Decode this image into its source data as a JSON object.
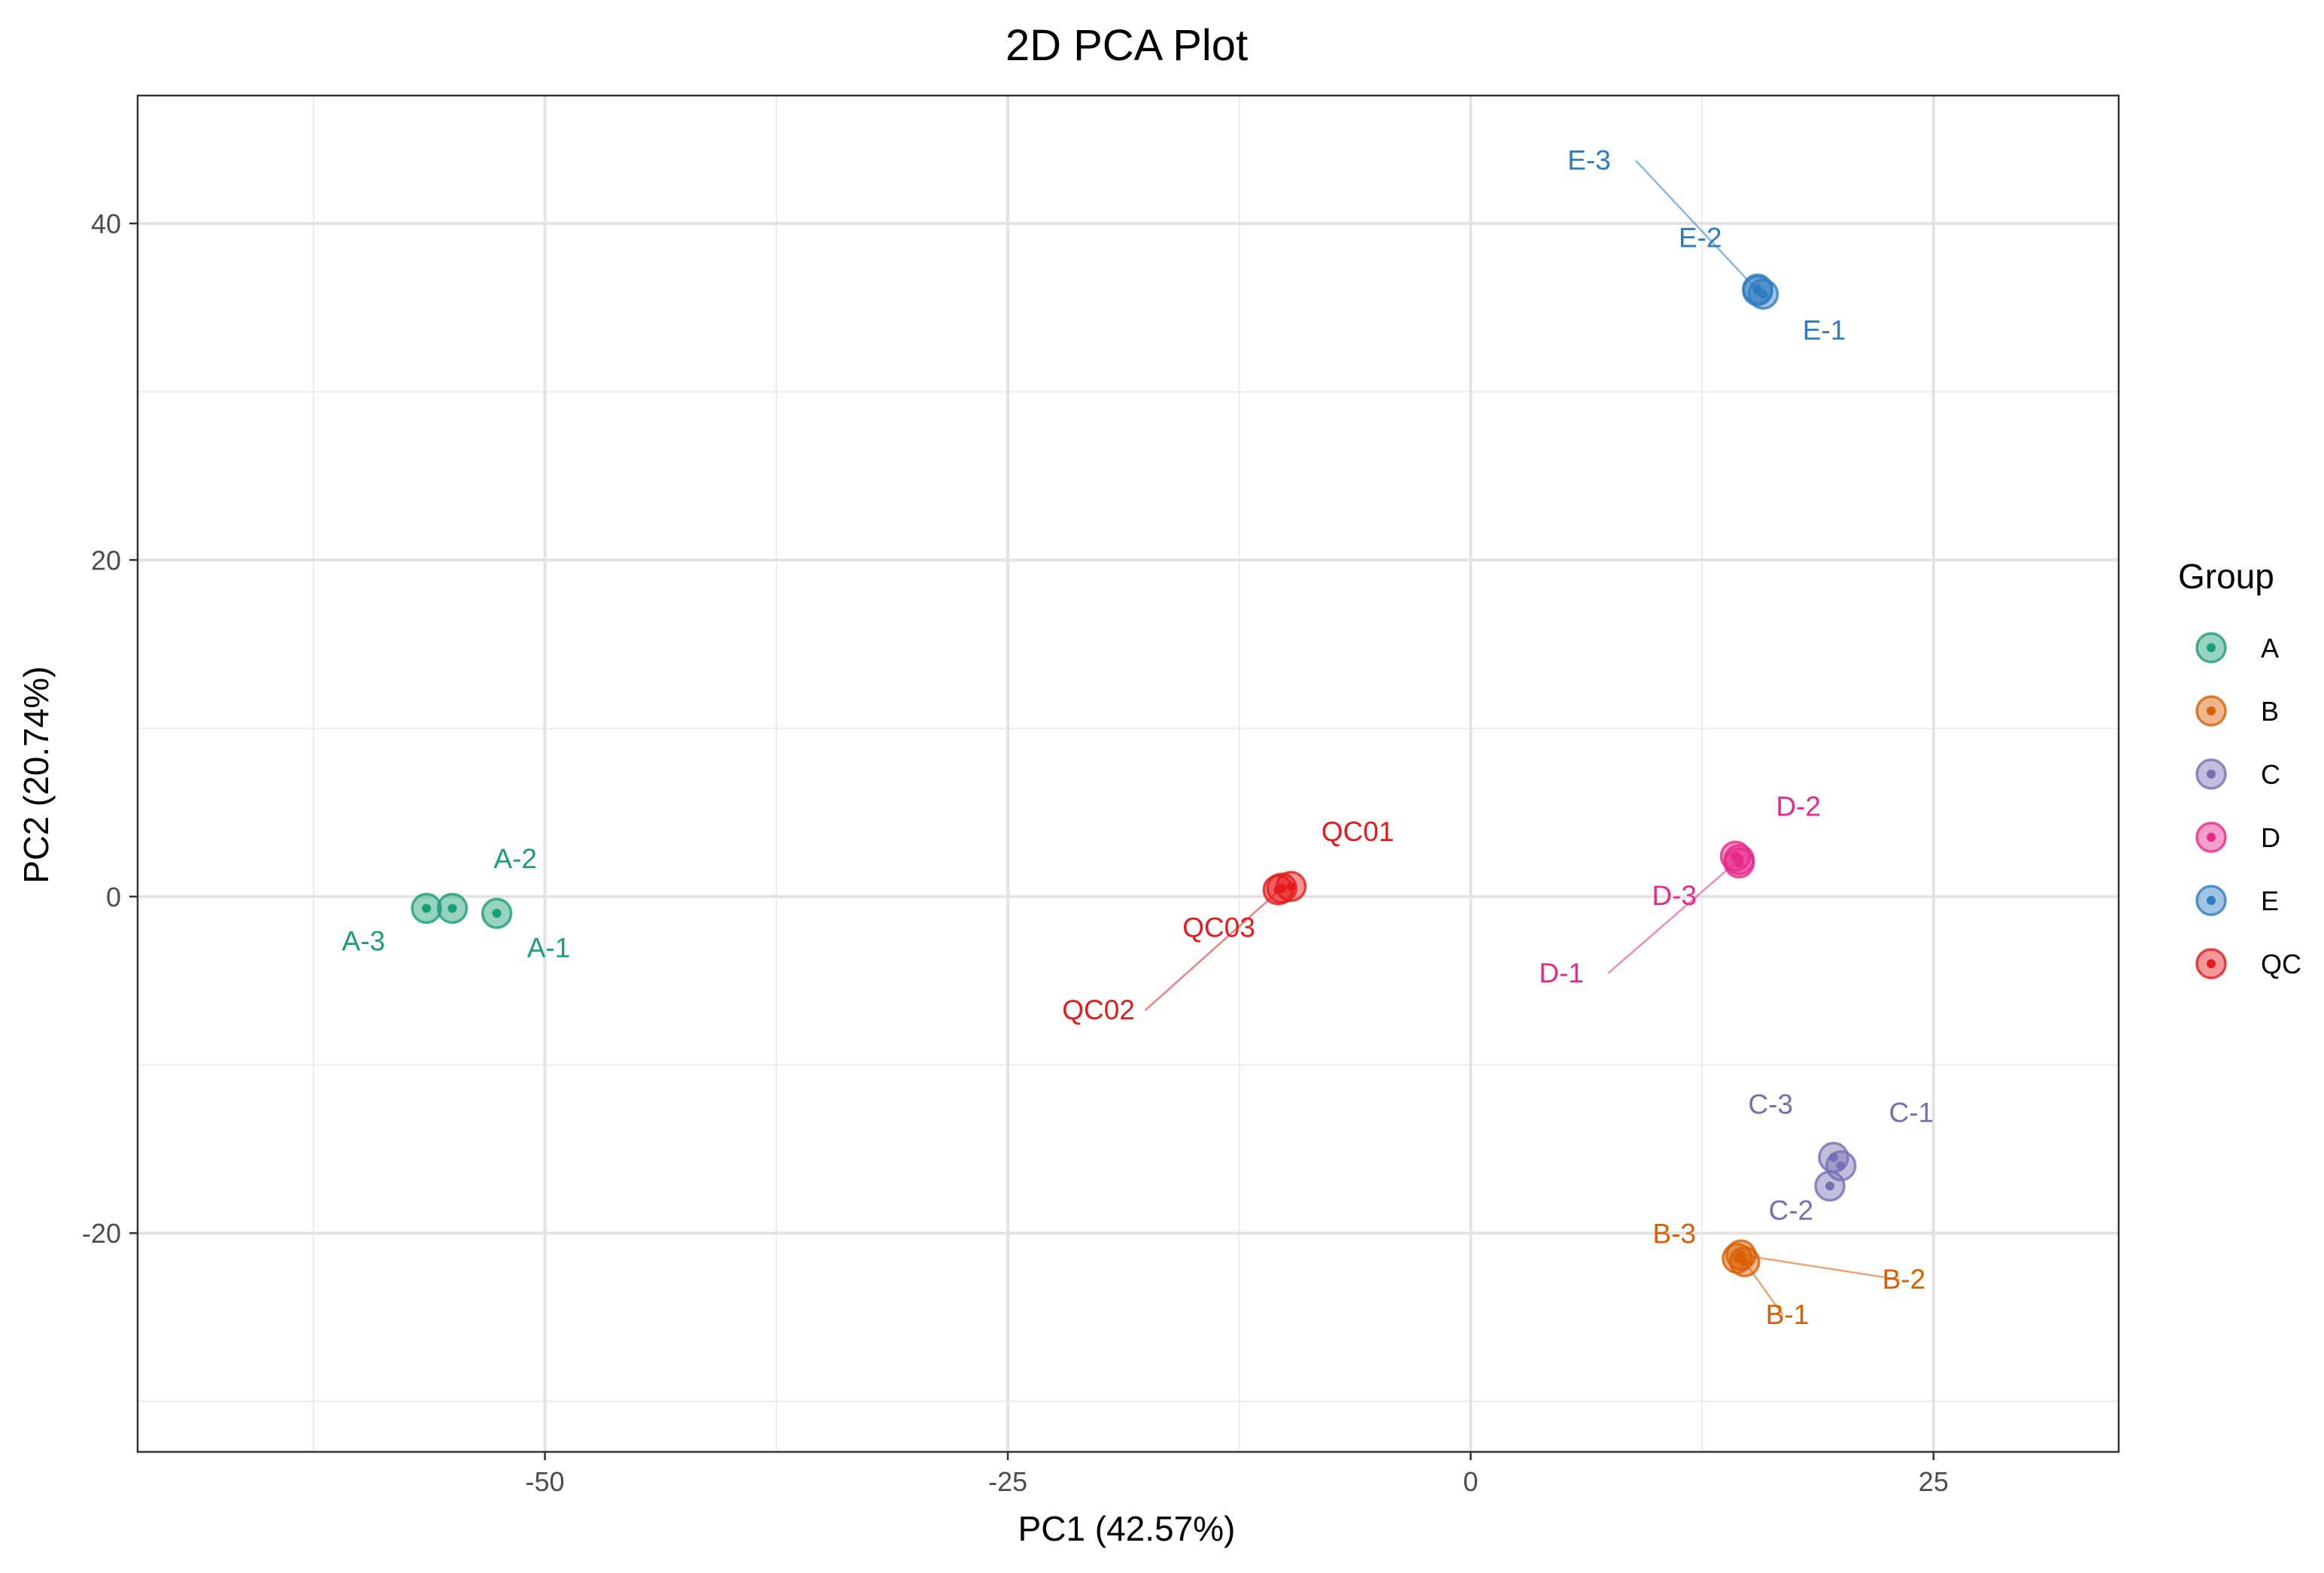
{
  "chart_data": {
    "type": "scatter",
    "title": "2D PCA Plot",
    "xlabel": "PC1 (42.57%)",
    "ylabel": "PC2 (20.74%)",
    "xlim": [
      -72,
      35
    ],
    "ylim": [
      -33,
      47.6
    ],
    "x_ticks": [
      -50,
      -25,
      0,
      25
    ],
    "x_tick_labels": [
      "-50",
      "-25",
      "0",
      "25"
    ],
    "y_ticks": [
      -20,
      0,
      20,
      40
    ],
    "y_tick_labels": [
      "-20",
      "0",
      "20",
      "40"
    ],
    "x_minor_ticks": [
      -62.5,
      -37.5,
      -12.5,
      12.5
    ],
    "y_minor_ticks": [
      -30,
      -10,
      10,
      30
    ],
    "grid": true,
    "legend": {
      "title": "Group",
      "position": "right",
      "entries": [
        {
          "name": "A",
          "color": "#1b9e77"
        },
        {
          "name": "B",
          "color": "#d95f02"
        },
        {
          "name": "C",
          "color": "#7570b3"
        },
        {
          "name": "D",
          "color": "#e7298a"
        },
        {
          "name": "E",
          "color": "#2e7cc0"
        },
        {
          "name": "QC",
          "color": "#e41a1c"
        }
      ]
    },
    "points": [
      {
        "label": "A-1",
        "group": "A",
        "x": -52.6,
        "y": -1.0,
        "lx": -49.8,
        "ly": -3.6,
        "leader": false
      },
      {
        "label": "A-2",
        "group": "A",
        "x": -55.0,
        "y": -0.7,
        "lx": -51.6,
        "ly": 1.7,
        "leader": false
      },
      {
        "label": "A-3",
        "group": "A",
        "x": -56.4,
        "y": -0.7,
        "lx": -59.8,
        "ly": -3.2,
        "leader": false
      },
      {
        "label": "B-1",
        "group": "B",
        "x": 14.8,
        "y": -21.7,
        "lx": 17.1,
        "ly": -25.4,
        "leader": true
      },
      {
        "label": "B-2",
        "group": "B",
        "x": 14.6,
        "y": -21.3,
        "lx": 23.4,
        "ly": -23.3,
        "leader": true
      },
      {
        "label": "B-3",
        "group": "B",
        "x": 14.4,
        "y": -21.5,
        "lx": 11.0,
        "ly": -20.6,
        "leader": false
      },
      {
        "label": "C-1",
        "group": "C",
        "x": 20.0,
        "y": -16.0,
        "lx": 23.8,
        "ly": -13.4,
        "leader": false
      },
      {
        "label": "C-2",
        "group": "C",
        "x": 19.4,
        "y": -17.2,
        "lx": 17.3,
        "ly": -19.2,
        "leader": false
      },
      {
        "label": "C-3",
        "group": "C",
        "x": 19.6,
        "y": -15.5,
        "lx": 16.2,
        "ly": -12.9,
        "leader": false
      },
      {
        "label": "D-1",
        "group": "D",
        "x": 14.5,
        "y": 2.2,
        "lx": 4.9,
        "ly": -5.1,
        "leader": true
      },
      {
        "label": "D-2",
        "group": "D",
        "x": 14.3,
        "y": 2.4,
        "lx": 17.7,
        "ly": 4.8,
        "leader": false
      },
      {
        "label": "D-3",
        "group": "D",
        "x": 14.5,
        "y": 2.0,
        "lx": 11.0,
        "ly": -0.5,
        "leader": false
      },
      {
        "label": "E-1",
        "group": "E",
        "x": 15.8,
        "y": 35.8,
        "lx": 19.1,
        "ly": 33.1,
        "leader": false
      },
      {
        "label": "E-2",
        "group": "E",
        "x": 15.5,
        "y": 36.1,
        "lx": 12.4,
        "ly": 38.6,
        "leader": false
      },
      {
        "label": "E-3",
        "group": "E",
        "x": 15.5,
        "y": 36.0,
        "lx": 6.4,
        "ly": 43.2,
        "leader": true
      },
      {
        "label": "QC01",
        "group": "QC",
        "x": -9.7,
        "y": 0.6,
        "lx": -6.1,
        "ly": 3.3,
        "leader": false
      },
      {
        "label": "QC02",
        "group": "QC",
        "x": -10.2,
        "y": 0.5,
        "lx": -20.1,
        "ly": -7.3,
        "leader": true
      },
      {
        "label": "QC03",
        "group": "QC",
        "x": -10.4,
        "y": 0.4,
        "lx": -13.6,
        "ly": -2.4,
        "leader": false
      }
    ]
  }
}
